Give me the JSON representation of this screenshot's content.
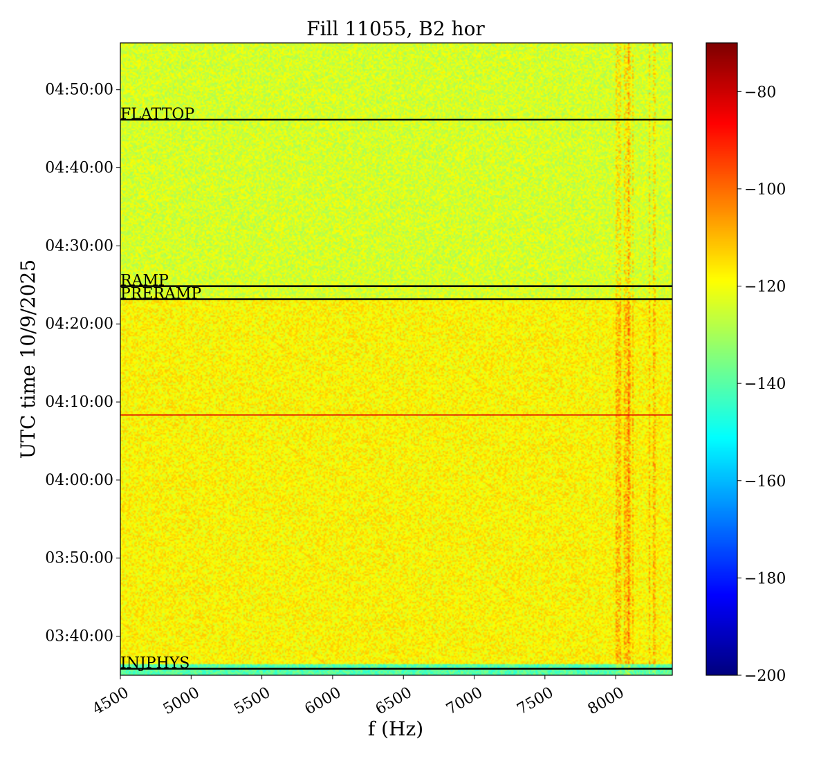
{
  "chart_data": {
    "type": "heatmap",
    "title": "Fill 11055, B2 hor",
    "xlabel": "f (Hz)",
    "ylabel": "UTC time 10/9/2025",
    "xlim": [
      4500,
      8400
    ],
    "ylim": [
      "03:35:00",
      "04:56:00"
    ],
    "x_ticks": [
      "4500",
      "5000",
      "5500",
      "6000",
      "6500",
      "7000",
      "7500",
      "8000"
    ],
    "y_ticks": [
      "03:40:00",
      "03:50:00",
      "04:00:00",
      "04:10:00",
      "04:20:00",
      "04:30:00",
      "04:40:00",
      "04:50:00"
    ],
    "colorbar": {
      "colormap": "jet",
      "range": [
        -200,
        -70
      ],
      "ticks": [
        "−80",
        "−100",
        "−120",
        "−140",
        "−160",
        "−180",
        "−200"
      ]
    },
    "phase_markers": [
      {
        "label": "FLATTOP",
        "time": "04:46:10",
        "color": "#000000"
      },
      {
        "label": "RAMP",
        "time": "04:24:50",
        "color": "#000000"
      },
      {
        "label": "PRERAMP",
        "time": "04:23:10",
        "color": "#000000"
      },
      {
        "label": "INJPHYS",
        "time": "03:35:50",
        "color": "#000000"
      }
    ],
    "extra_lines": [
      {
        "time": "04:08:20",
        "color": "#e00000"
      }
    ],
    "regions": [
      {
        "from": "03:35:00",
        "to": "03:36:30",
        "level": -140
      },
      {
        "from": "03:36:30",
        "to": "04:23:10",
        "level": -118
      },
      {
        "from": "04:23:10",
        "to": "04:56:00",
        "level": -124
      }
    ],
    "spectral_lines_hz": [
      8010,
      8030,
      8070,
      8090,
      8100,
      8120,
      8240,
      8270
    ],
    "background_level": -121,
    "grid": false
  }
}
